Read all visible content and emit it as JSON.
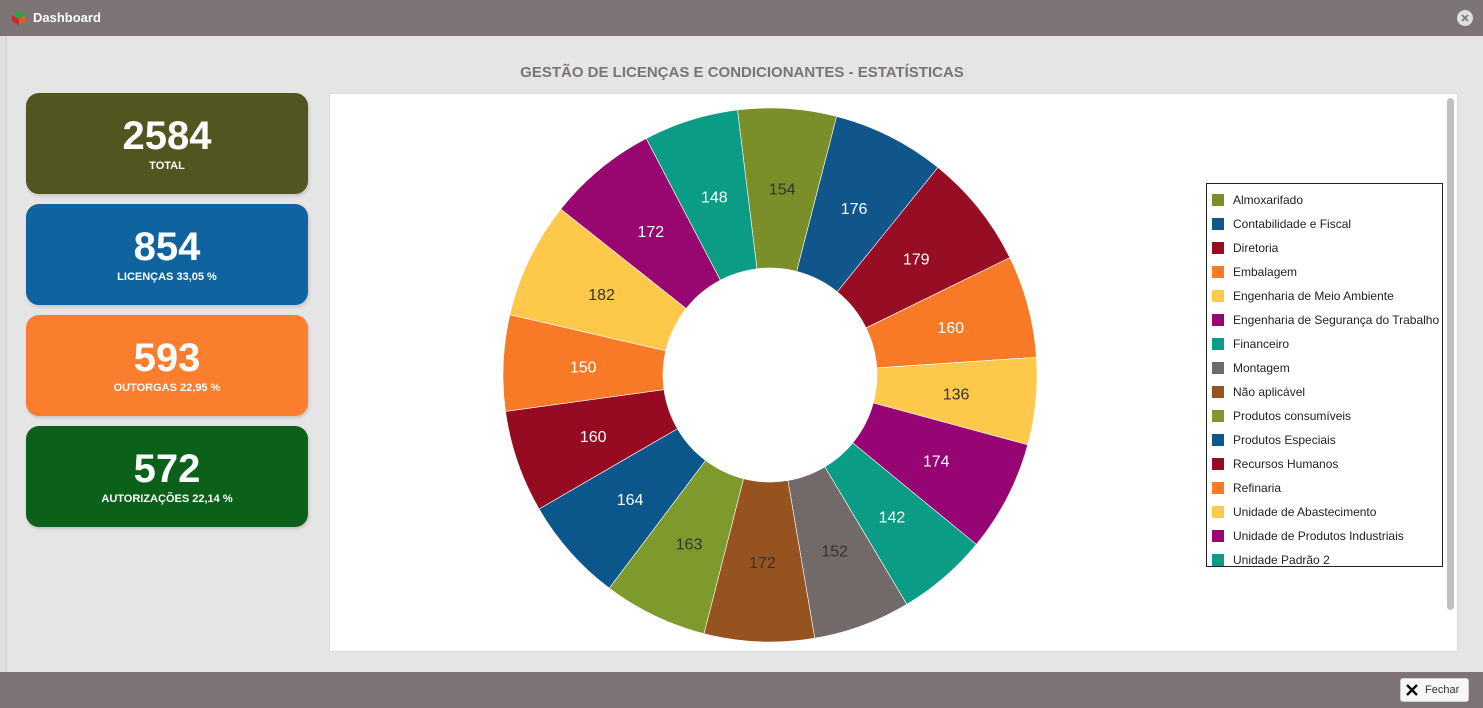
{
  "window": {
    "title": "Dashboard"
  },
  "heading": "GESTÃO DE LICENÇAS E CONDICIONANTES - ESTATÍSTICAS",
  "cards": [
    {
      "value": "2584",
      "label": "TOTAL",
      "color": "#535520"
    },
    {
      "value": "854",
      "label": "LICENÇAS 33,05 %",
      "color": "#0f639e"
    },
    {
      "value": "593",
      "label": "OUTORGAS 22,95 %",
      "color": "#fb7d2e"
    },
    {
      "value": "572",
      "label": "AUTORIZAÇÕES 22,14 %",
      "color": "#0b611a"
    }
  ],
  "footer": {
    "close_label": "Fechar"
  },
  "chart_data": {
    "type": "pie",
    "variant": "donut",
    "legend": "right",
    "slices": [
      {
        "label": "Almoxarifado",
        "value": 154,
        "color": "#7a8e2a"
      },
      {
        "label": "Contabilidade e Fiscal",
        "value": 176,
        "color": "#10568b"
      },
      {
        "label": "Diretoria",
        "value": 179,
        "color": "#960d24"
      },
      {
        "label": "Embalagem",
        "value": 160,
        "color": "#f97a26"
      },
      {
        "label": "Engenharia de Meio Ambiente",
        "value": 136,
        "color": "#fec84a"
      },
      {
        "label": "Engenharia de Segurança do Trabalho",
        "value": 174,
        "color": "#970574"
      },
      {
        "label": "Financeiro",
        "value": 142,
        "color": "#0b9c86"
      },
      {
        "label": "Montagem",
        "value": 152,
        "color": "#716a69"
      },
      {
        "label": "Não aplicável",
        "value": 172,
        "color": "#96521f"
      },
      {
        "label": "Produtos consumíveis",
        "value": 163,
        "color": "#7f9a2c"
      },
      {
        "label": "Produtos Especiais",
        "value": 164,
        "color": "#0b568a"
      },
      {
        "label": "Recursos Humanos",
        "value": 160,
        "color": "#960b22"
      },
      {
        "label": "Refinaria",
        "value": 150,
        "color": "#f97a26"
      },
      {
        "label": "Unidade de Abastecimento",
        "value": 182,
        "color": "#fec84a"
      },
      {
        "label": "Unidade de Produtos Industriais",
        "value": 172,
        "color": "#98066f"
      },
      {
        "label": "Unidade Padrão 2",
        "value": 148,
        "color": "#0b9c86"
      }
    ]
  }
}
